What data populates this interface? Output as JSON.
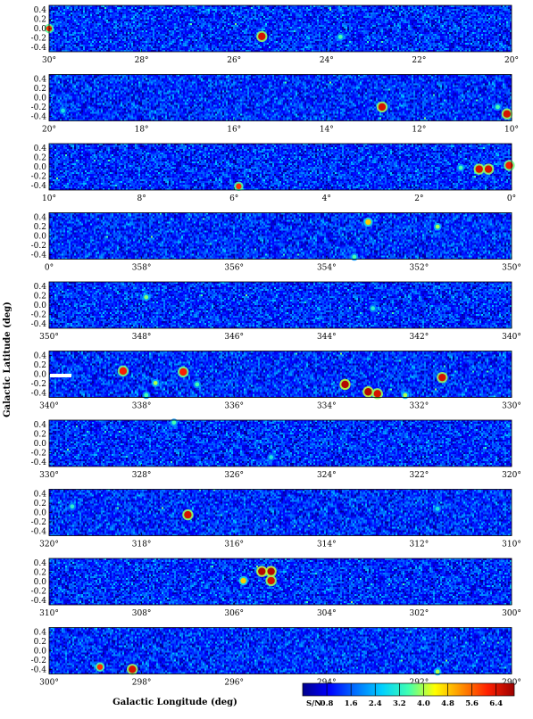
{
  "chart_data": {
    "type": "heatmap",
    "xlabel": "Galactic Longitude (deg)",
    "ylabel": "Galactic Latitude (deg)",
    "y_ticks": [
      "0.4",
      "0.2",
      "0.0",
      "-0.2",
      "-0.4"
    ],
    "y_values": [
      0.4,
      0.2,
      0.0,
      -0.2,
      -0.4
    ],
    "ylim": [
      -0.5,
      0.5
    ],
    "colorbar": {
      "title": "S/N",
      "ticks": [
        "0.8",
        "1.6",
        "2.4",
        "3.2",
        "4.0",
        "4.8",
        "5.6",
        "6.4"
      ],
      "range": [
        0,
        7.0
      ],
      "colors": [
        "#00008c",
        "#0000ff",
        "#0070ff",
        "#00d0ff",
        "#40ffb0",
        "#ffff00",
        "#ff9000",
        "#ff2000",
        "#9c0000"
      ]
    },
    "panels": [
      {
        "x_ticks": [
          "30°",
          "28°",
          "26°",
          "24°",
          "22°",
          "20°"
        ],
        "xlim": [
          30,
          20
        ],
        "sources": [
          {
            "l": 30.0,
            "b": 0.0,
            "sn": 6.0
          },
          {
            "l": 25.4,
            "b": -0.17,
            "sn": 6.5
          },
          {
            "l": 23.7,
            "b": -0.18,
            "sn": 3.5
          }
        ]
      },
      {
        "x_ticks": [
          "20°",
          "18°",
          "16°",
          "14°",
          "12°",
          "10°"
        ],
        "xlim": [
          20,
          10
        ],
        "sources": [
          {
            "l": 12.8,
            "b": -0.2,
            "sn": 6.5
          },
          {
            "l": 10.1,
            "b": -0.35,
            "sn": 6.5
          },
          {
            "l": 10.3,
            "b": -0.2,
            "sn": 3.5
          },
          {
            "l": 19.7,
            "b": -0.28,
            "sn": 3.0
          }
        ]
      },
      {
        "x_ticks": [
          "10°",
          "8°",
          "6°",
          "4°",
          "2°",
          "0°"
        ],
        "xlim": [
          10,
          0
        ],
        "sources": [
          {
            "l": 5.9,
            "b": -0.42,
            "sn": 6.0
          },
          {
            "l": 0.7,
            "b": -0.05,
            "sn": 6.5
          },
          {
            "l": 0.5,
            "b": -0.05,
            "sn": 6.5
          },
          {
            "l": 0.05,
            "b": 0.03,
            "sn": 6.2
          },
          {
            "l": 1.1,
            "b": -0.02,
            "sn": 3.5
          }
        ]
      },
      {
        "x_ticks": [
          "0°",
          "358°",
          "356°",
          "354°",
          "352°",
          "350°"
        ],
        "xlim": [
          360,
          350
        ],
        "sources": [
          {
            "l": 353.1,
            "b": 0.3,
            "sn": 4.8
          },
          {
            "l": 351.6,
            "b": 0.2,
            "sn": 4.0
          },
          {
            "l": 353.4,
            "b": -0.45,
            "sn": 3.5
          }
        ]
      },
      {
        "x_ticks": [
          "350°",
          "348°",
          "346°",
          "344°",
          "342°",
          "340°"
        ],
        "xlim": [
          350,
          340
        ],
        "sources": [
          {
            "l": 347.9,
            "b": 0.17,
            "sn": 3.8
          },
          {
            "l": 343.0,
            "b": -0.07,
            "sn": 3.2
          }
        ]
      },
      {
        "x_ticks": [
          "340°",
          "338°",
          "336°",
          "334°",
          "332°",
          "330°"
        ],
        "xlim": [
          340,
          330
        ],
        "sources": [
          {
            "l": 338.4,
            "b": 0.07,
            "sn": 6.2
          },
          {
            "l": 337.1,
            "b": 0.05,
            "sn": 6.2
          },
          {
            "l": 337.7,
            "b": -0.19,
            "sn": 4.0
          },
          {
            "l": 336.8,
            "b": -0.22,
            "sn": 3.5
          },
          {
            "l": 333.6,
            "b": -0.22,
            "sn": 6.8
          },
          {
            "l": 333.1,
            "b": -0.38,
            "sn": 6.8
          },
          {
            "l": 332.9,
            "b": -0.42,
            "sn": 6.5
          },
          {
            "l": 331.5,
            "b": -0.07,
            "sn": 6.5
          },
          {
            "l": 332.3,
            "b": -0.45,
            "sn": 4.0
          },
          {
            "l": 337.9,
            "b": -0.45,
            "sn": 3.5
          }
        ]
      },
      {
        "x_ticks": [
          "330°",
          "328°",
          "326°",
          "324°",
          "322°",
          "320°"
        ],
        "xlim": [
          330,
          320
        ],
        "sources": [
          {
            "l": 327.3,
            "b": 0.45,
            "sn": 3.5
          },
          {
            "l": 325.2,
            "b": -0.3,
            "sn": 3.0
          }
        ]
      },
      {
        "x_ticks": [
          "320°",
          "318°",
          "316°",
          "314°",
          "312°",
          "310°"
        ],
        "xlim": [
          320,
          310
        ],
        "sources": [
          {
            "l": 317.0,
            "b": -0.05,
            "sn": 6.5
          },
          {
            "l": 319.5,
            "b": 0.13,
            "sn": 3.2
          },
          {
            "l": 311.6,
            "b": 0.08,
            "sn": 3.0
          }
        ]
      },
      {
        "x_ticks": [
          "310°",
          "308°",
          "306°",
          "304°",
          "302°",
          "300°"
        ],
        "xlim": [
          310,
          300
        ],
        "sources": [
          {
            "l": 305.4,
            "b": 0.22,
            "sn": 6.8
          },
          {
            "l": 305.2,
            "b": 0.22,
            "sn": 6.8
          },
          {
            "l": 305.2,
            "b": 0.02,
            "sn": 6.5
          },
          {
            "l": 305.8,
            "b": 0.02,
            "sn": 4.8
          }
        ]
      },
      {
        "x_ticks": [
          "300°",
          "298°",
          "296°",
          "294°",
          "292°",
          "290°"
        ],
        "xlim": [
          300,
          290
        ],
        "sources": [
          {
            "l": 298.9,
            "b": -0.35,
            "sn": 6.0
          },
          {
            "l": 298.2,
            "b": -0.4,
            "sn": 6.5
          },
          {
            "l": 291.6,
            "b": -0.45,
            "sn": 4.0
          }
        ]
      }
    ]
  }
}
